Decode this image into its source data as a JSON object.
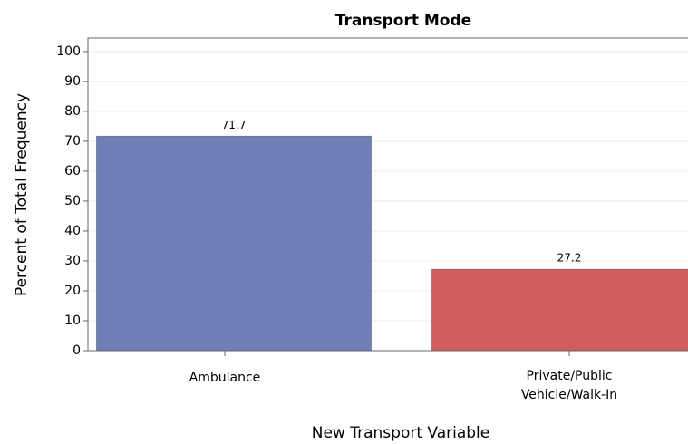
{
  "chart_data": {
    "type": "bar",
    "title": "Transport Mode",
    "x_label": "New Transport Variable",
    "y_label": "Percent of Total Frequency",
    "categories": [
      "Ambulance",
      "Private/Public Vehicle/Walk-In"
    ],
    "values": [
      71.7,
      27.2
    ],
    "colors": [
      "#6f7fb5",
      "#d15c5c"
    ],
    "ylim": [
      0,
      104.5
    ],
    "yticks": [
      0,
      10,
      20,
      30,
      40,
      50,
      60,
      70,
      80,
      90,
      100
    ],
    "grid": true
  }
}
